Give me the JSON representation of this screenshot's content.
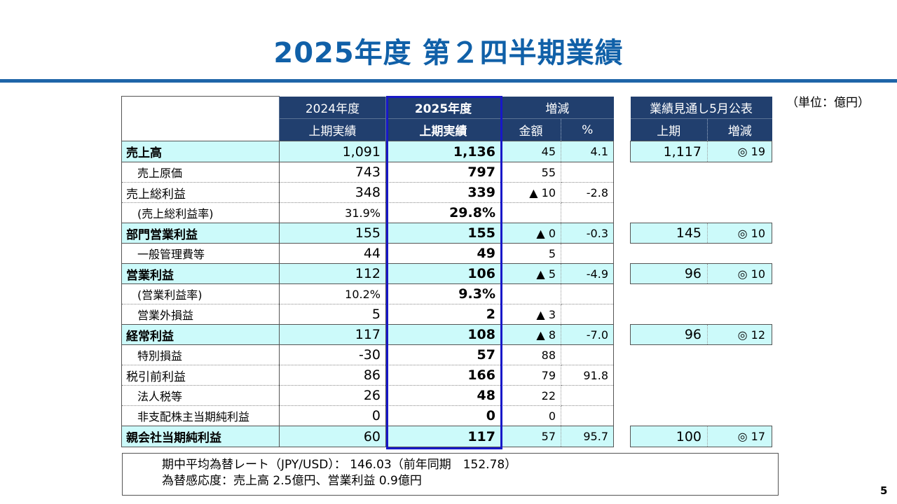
{
  "title": "2025年度 第２四半期業績",
  "unit": "（単位：億円）",
  "page_number": "5",
  "header": {
    "col_prev_year": "2024年度",
    "col_prev_sub": "上期実績",
    "col_curr_year": "2025年度",
    "col_curr_sub": "上期実績",
    "col_change": "増減",
    "col_change_amount": "金額",
    "col_change_pct": "%",
    "col_forecast": "業績見通し5月公表",
    "col_forecast_h1": "上期",
    "col_forecast_change": "増減"
  },
  "rows": [
    {
      "label": "売上高",
      "prev": "1,091",
      "curr": "1,136",
      "chg": "45",
      "pct": "4.1",
      "fc": "1,117",
      "fcchg": "◎ 19"
    },
    {
      "label": "売上原価",
      "prev": "743",
      "curr": "797",
      "chg": "55",
      "pct": ""
    },
    {
      "label": "売上総利益",
      "prev": "348",
      "curr": "339",
      "chg": "▲ 10",
      "pct": "-2.8"
    },
    {
      "label": "(売上総利益率)",
      "prev": "31.9%",
      "curr": "29.8%",
      "chg": "",
      "pct": ""
    },
    {
      "label": "部門営業利益",
      "prev": "155",
      "curr": "155",
      "chg": "▲ 0",
      "pct": "-0.3",
      "fc": "145",
      "fcchg": "◎ 10"
    },
    {
      "label": "一般管理費等",
      "prev": "44",
      "curr": "49",
      "chg": "5",
      "pct": ""
    },
    {
      "label": "営業利益",
      "prev": "112",
      "curr": "106",
      "chg": "▲ 5",
      "pct": "-4.9",
      "fc": "96",
      "fcchg": "◎ 10"
    },
    {
      "label": "(営業利益率)",
      "prev": "10.2%",
      "curr": "9.3%",
      "chg": "",
      "pct": ""
    },
    {
      "label": "営業外損益",
      "prev": "5",
      "curr": "2",
      "chg": "▲ 3",
      "pct": ""
    },
    {
      "label": "経常利益",
      "prev": "117",
      "curr": "108",
      "chg": "▲ 8",
      "pct": "-7.0",
      "fc": "96",
      "fcchg": "◎ 12"
    },
    {
      "label": "特別損益",
      "prev": "-30",
      "curr": "57",
      "chg": "88",
      "pct": ""
    },
    {
      "label": "税引前利益",
      "prev": "86",
      "curr": "166",
      "chg": "79",
      "pct": "91.8"
    },
    {
      "label": "法人税等",
      "prev": "26",
      "curr": "48",
      "chg": "22",
      "pct": ""
    },
    {
      "label": "非支配株主当期純利益",
      "prev": "0",
      "curr": "0",
      "chg": "0",
      "pct": ""
    },
    {
      "label": "親会社当期純利益",
      "prev": "60",
      "curr": "117",
      "chg": "57",
      "pct": "95.7",
      "fc": "100",
      "fcchg": "◎ 17"
    }
  ],
  "notes": {
    "line1": "期中平均為替レート（JPY/USD）： 146.03（前年同期　152.78）",
    "line2": "為替感応度：売上高 2.5億円、営業利益 0.9億円"
  },
  "colors": {
    "title": "#1060a8",
    "header_bg": "#213f6e",
    "highlight": "#ccfafa",
    "frame": "#1818c8"
  }
}
